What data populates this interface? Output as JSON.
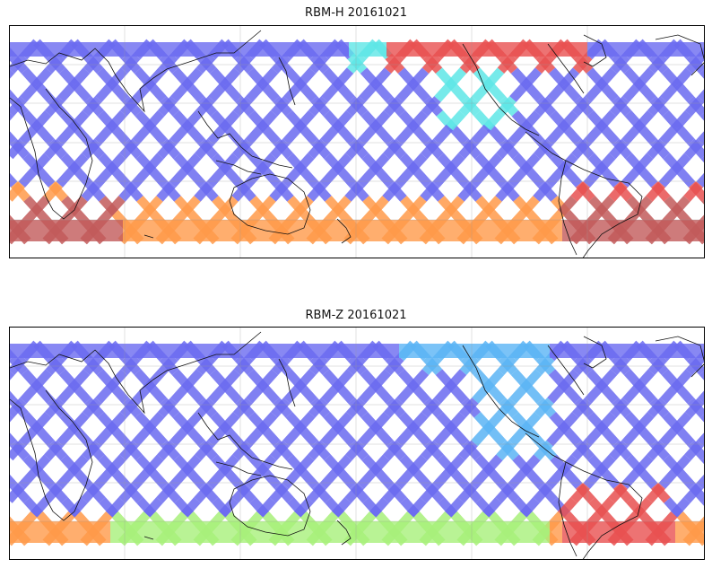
{
  "panels": [
    {
      "title": "RBM-H 20161021",
      "colormap": "jet",
      "high_intensity_regions": [
        "southern high latitudes",
        "south atlantic",
        "north pacific near north america"
      ]
    },
    {
      "title": "RBM-Z 20161021",
      "colormap": "jet",
      "high_intensity_regions": [
        "south atlantic near south america",
        "southern indian ocean"
      ]
    }
  ],
  "map": {
    "projection": "cylindrical",
    "coastlines": true,
    "gridlines": true,
    "track_pattern": "crossing satellite swaths"
  },
  "colors": {
    "low": "#6a6af0",
    "mid_low": "#5ab4f5",
    "mid": "#5ee6e6",
    "mid_high": "#a8f07a",
    "high": "#ffe15a",
    "higher": "#ff9a4a",
    "max": "#e85050",
    "saturated": "#c25a5a"
  }
}
